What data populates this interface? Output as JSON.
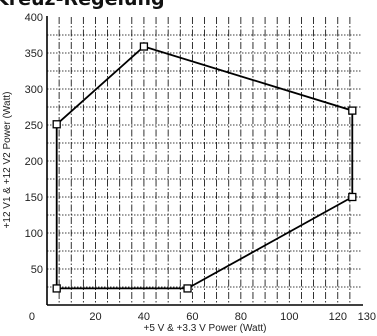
{
  "chart_data": {
    "type": "line",
    "title": "Kreuz-Regelung",
    "xlabel": "+5 V & +3.3 V Power (Watt)",
    "ylabel": "+12 V1 & +12 V2 Power (Watt)",
    "xlim": [
      0,
      130
    ],
    "ylim": [
      0,
      400
    ],
    "x_ticks": [
      0,
      20,
      40,
      60,
      80,
      100,
      120,
      130
    ],
    "y_ticks": [
      50,
      100,
      150,
      200,
      250,
      300,
      350,
      400
    ],
    "x_minor_step": 5,
    "y_minor_step": 25,
    "grid": true,
    "series": [
      {
        "points": [
          {
            "x": 4,
            "y": 251
          },
          {
            "x": 40,
            "y": 359
          },
          {
            "x": 126,
            "y": 270
          },
          {
            "x": 126,
            "y": 150
          },
          {
            "x": 58,
            "y": 23
          },
          {
            "x": 4,
            "y": 23
          },
          {
            "x": 4,
            "y": 251
          }
        ]
      }
    ],
    "colors": {
      "line": "#000000",
      "axis": "#000000",
      "grid": "#000000"
    }
  }
}
